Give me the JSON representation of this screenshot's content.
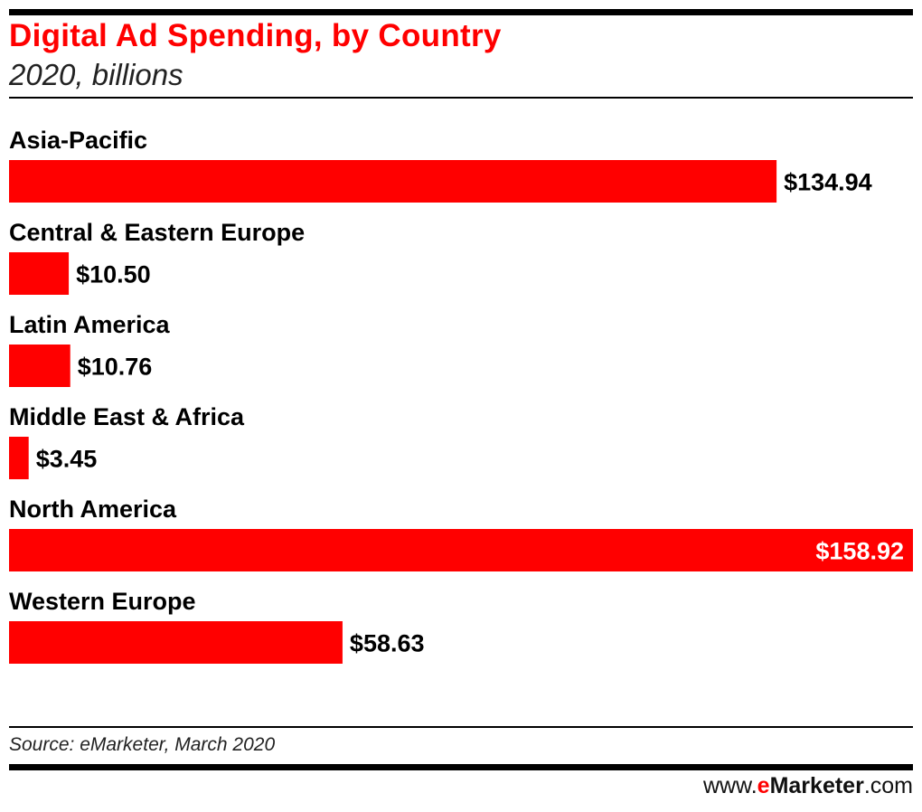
{
  "header": {
    "title": "Digital Ad Spending, by Country",
    "subtitle": "2020, billions"
  },
  "footer": {
    "source": "Source: eMarketer, March 2020",
    "brand_prefix": "www.",
    "brand_e": "e",
    "brand_name": "Marketer",
    "brand_suffix": ".com"
  },
  "colors": {
    "accent": "#ff0000",
    "text": "#000000",
    "label_inside": "#ffffff"
  },
  "chart_data": {
    "type": "bar",
    "orientation": "horizontal",
    "title": "Digital Ad Spending, by Country",
    "subtitle": "2020, billions",
    "categories": [
      "Asia-Pacific",
      "Central & Eastern Europe",
      "Latin America",
      "Middle East & Africa",
      "North America",
      "Western Europe"
    ],
    "values": [
      134.94,
      10.5,
      10.76,
      3.45,
      158.92,
      58.63
    ],
    "value_labels": [
      "$134.94",
      "$10.50",
      "$10.76",
      "$3.45",
      "$158.92",
      "$58.63"
    ],
    "xlim": [
      0,
      158.92
    ],
    "grid": false,
    "legend": "none"
  }
}
